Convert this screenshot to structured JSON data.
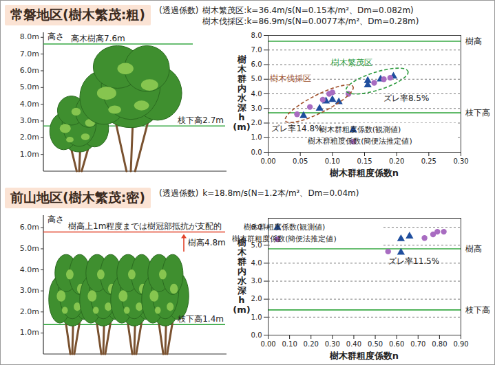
{
  "panels": [
    {
      "title": "常磐地区(樹木繁茂:粗)",
      "notes_label": "(透過係数)",
      "notes": [
        "樹木繁茂区:k=36.4m/s(N=0.15本/m²、Dm=0.082m)",
        "樹木伐採区:k=86.9m/s(N=0.0077本/m²、Dm=0.28m)"
      ],
      "illustration": {
        "axis_label": "高さ",
        "ylim": [
          0,
          8.3
        ],
        "yticks": [
          {
            "value": 1,
            "label": "1.0m"
          },
          {
            "value": 2,
            "label": "2.0m"
          },
          {
            "value": 3,
            "label": "3.0m"
          },
          {
            "value": 4,
            "label": "4.0m"
          },
          {
            "value": 5,
            "label": "5.0m"
          },
          {
            "value": 6,
            "label": "6.0m"
          },
          {
            "value": 7,
            "label": "7.0m"
          },
          {
            "value": 8,
            "label": "8.0m"
          }
        ],
        "tree_height": {
          "value": 7.6,
          "label": "高木樹高7.6m"
        },
        "crown_base": {
          "value": 2.7,
          "label": "枝下高2.7m"
        }
      }
    },
    {
      "title": "前山地区(樹木繁茂:密)",
      "notes_label": "(透過係数)",
      "notes": [
        "k=18.8m/s(N=1.2本/m²、Dm=0.04m)"
      ],
      "illustration": {
        "axis_label": "高さ",
        "ylim": [
          0,
          6.6
        ],
        "yticks": [
          {
            "value": 1,
            "label": "1.0m"
          },
          {
            "value": 2,
            "label": "2.0m"
          },
          {
            "value": 3,
            "label": "3.0m"
          },
          {
            "value": 4,
            "label": "4.0m"
          },
          {
            "value": 5,
            "label": "5.0m"
          },
          {
            "value": 6,
            "label": "6.0m"
          }
        ],
        "tree_height": {
          "value": 4.8,
          "label": "樹高4.8m"
        },
        "crown_base": {
          "value": 1.4,
          "label": "枝下高1.4m"
        },
        "dominant_height": {
          "value": 5.8,
          "label": "樹高上1m程度までは樹冠部抵抗が支配的"
        }
      }
    }
  ],
  "chart_data": [
    {
      "type": "scatter",
      "xlabel": "樹木群粗度係数n",
      "ylabel": "樹木群内水深h(m)",
      "xlim": [
        0,
        0.3
      ],
      "xticks": [
        {
          "value": 0,
          "label": "0.00"
        },
        {
          "value": 0.05,
          "label": "0.05"
        },
        {
          "value": 0.1,
          "label": "0.10"
        },
        {
          "value": 0.15,
          "label": "0.15"
        },
        {
          "value": 0.2,
          "label": "0.20"
        },
        {
          "value": 0.25,
          "label": "0.25"
        },
        {
          "value": 0.3,
          "label": "0.30"
        }
      ],
      "ylim": [
        0,
        8
      ],
      "yticks": [
        {
          "value": 0,
          "label": "0.0"
        },
        {
          "value": 1,
          "label": "1.0"
        },
        {
          "value": 2,
          "label": "2.0"
        },
        {
          "value": 3,
          "label": "3.0"
        },
        {
          "value": 4,
          "label": "4.0"
        },
        {
          "value": 5,
          "label": "5.0"
        },
        {
          "value": 6,
          "label": "6.0"
        },
        {
          "value": 7,
          "label": "7.0"
        },
        {
          "value": 8,
          "label": "8.0"
        }
      ],
      "grid": true,
      "legend": "bottom-right",
      "reference_lines": [
        {
          "label": "樹高",
          "value": 7.6
        },
        {
          "label": "枝下高",
          "value": 2.7
        }
      ],
      "regions": [
        {
          "label": "樹木繁茂区",
          "color": "#2e9b3e",
          "x_range": [
            0.13,
            0.21
          ],
          "y_range": [
            4.3,
            5.4
          ]
        },
        {
          "label": "樹木伐採区",
          "color": "#a0522d",
          "x_range": [
            0.035,
            0.125
          ],
          "y_range": [
            2.3,
            4.3
          ]
        }
      ],
      "annotations": [
        {
          "text": "ズレ率8.5%",
          "x": 0.215,
          "y": 3.7
        },
        {
          "text": "ズレ率14.8%",
          "x": 0.045,
          "y": 1.6
        }
      ],
      "series": [
        {
          "name": "樹木群粗度係数(観測値)",
          "color": "#1f4e9e",
          "marker": "triangle",
          "x": [
            0.055,
            0.08,
            0.09,
            0.1,
            0.11,
            0.155,
            0.155,
            0.175,
            0.195
          ],
          "values": [
            2.5,
            3.0,
            3.5,
            3.6,
            3.45,
            4.6,
            4.9,
            5.0,
            5.2
          ]
        },
        {
          "name": "樹木群粗度係数(簡便法推定値)",
          "color": "#a86cc1",
          "marker": "circle",
          "x": [
            0.045,
            0.065,
            0.085,
            0.095,
            0.1,
            0.125,
            0.165,
            0.18,
            0.19
          ],
          "values": [
            2.6,
            3.1,
            3.6,
            4.0,
            4.1,
            4.0,
            4.75,
            5.0,
            5.1
          ]
        }
      ]
    },
    {
      "type": "scatter",
      "xlabel": "樹木群粗度係数n",
      "ylabel": "樹木群内水深h(m)",
      "xlim": [
        0,
        0.9
      ],
      "xticks": [
        {
          "value": 0,
          "label": "0.00"
        },
        {
          "value": 0.1,
          "label": "0.10"
        },
        {
          "value": 0.2,
          "label": "0.20"
        },
        {
          "value": 0.3,
          "label": "0.30"
        },
        {
          "value": 0.4,
          "label": "0.40"
        },
        {
          "value": 0.5,
          "label": "0.50"
        },
        {
          "value": 0.6,
          "label": "0.60"
        },
        {
          "value": 0.7,
          "label": "0.70"
        },
        {
          "value": 0.8,
          "label": "0.80"
        },
        {
          "value": 0.9,
          "label": "0.90"
        }
      ],
      "ylim": [
        0,
        6.5
      ],
      "yticks": [
        {
          "value": 0,
          "label": "0.0"
        },
        {
          "value": 1,
          "label": "1.0"
        },
        {
          "value": 2,
          "label": "2.0"
        },
        {
          "value": 3,
          "label": "3.0"
        },
        {
          "value": 4,
          "label": "4.0"
        },
        {
          "value": 5,
          "label": "5.0"
        },
        {
          "value": 6,
          "label": "6.0"
        }
      ],
      "grid": true,
      "legend": "top-left",
      "reference_lines": [
        {
          "label": "樹高",
          "value": 4.8
        },
        {
          "label": "枝下高",
          "value": 1.4
        }
      ],
      "regions": [],
      "annotations": [
        {
          "text": "ズレ率11.5%",
          "x": 0.68,
          "y": 4.1
        }
      ],
      "series": [
        {
          "name": "樹木群粗度係数(観測値)",
          "color": "#1f4e9e",
          "marker": "triangle",
          "x": [
            0.62,
            0.62,
            0.66
          ],
          "values": [
            4.6,
            5.35,
            5.5
          ]
        },
        {
          "name": "樹木群粗度係数(簡便法推定値)",
          "color": "#a86cc1",
          "marker": "circle",
          "x": [
            0.56,
            0.73,
            0.77,
            0.79,
            0.82
          ],
          "values": [
            4.65,
            5.4,
            5.6,
            5.75,
            5.75
          ]
        }
      ]
    }
  ]
}
